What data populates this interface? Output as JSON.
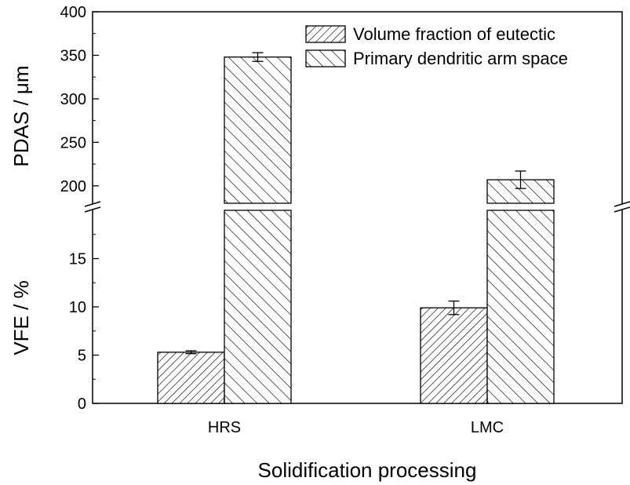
{
  "chart_data": {
    "type": "bar",
    "categories": [
      "HRS",
      "LMC"
    ],
    "xlabel": "Solidification processing",
    "grid": false,
    "legend_position": "top-right",
    "series": [
      {
        "name": "Volume fraction of eutectic",
        "axis": "lower",
        "values": [
          5.3,
          9.9
        ],
        "errors": [
          0.15,
          0.7
        ],
        "pattern": "dense diagonal hatch"
      },
      {
        "name": "Primary dendritic arm space",
        "axis": "upper",
        "values": [
          348,
          207
        ],
        "errors": [
          5,
          10
        ],
        "pattern": "sparse back-diagonal hatch"
      }
    ],
    "upper_axis": {
      "label": "PDAS / μm",
      "ylim": [
        180,
        400
      ],
      "ticks": [
        "200",
        "250",
        "300",
        "350",
        "400"
      ],
      "tick_values": [
        200,
        250,
        300,
        350,
        400
      ]
    },
    "lower_axis": {
      "label": "VFE / %",
      "ylim": [
        0,
        20
      ],
      "ticks": [
        "0",
        "5",
        "10",
        "15"
      ],
      "tick_values": [
        0,
        5,
        10,
        15
      ]
    }
  }
}
